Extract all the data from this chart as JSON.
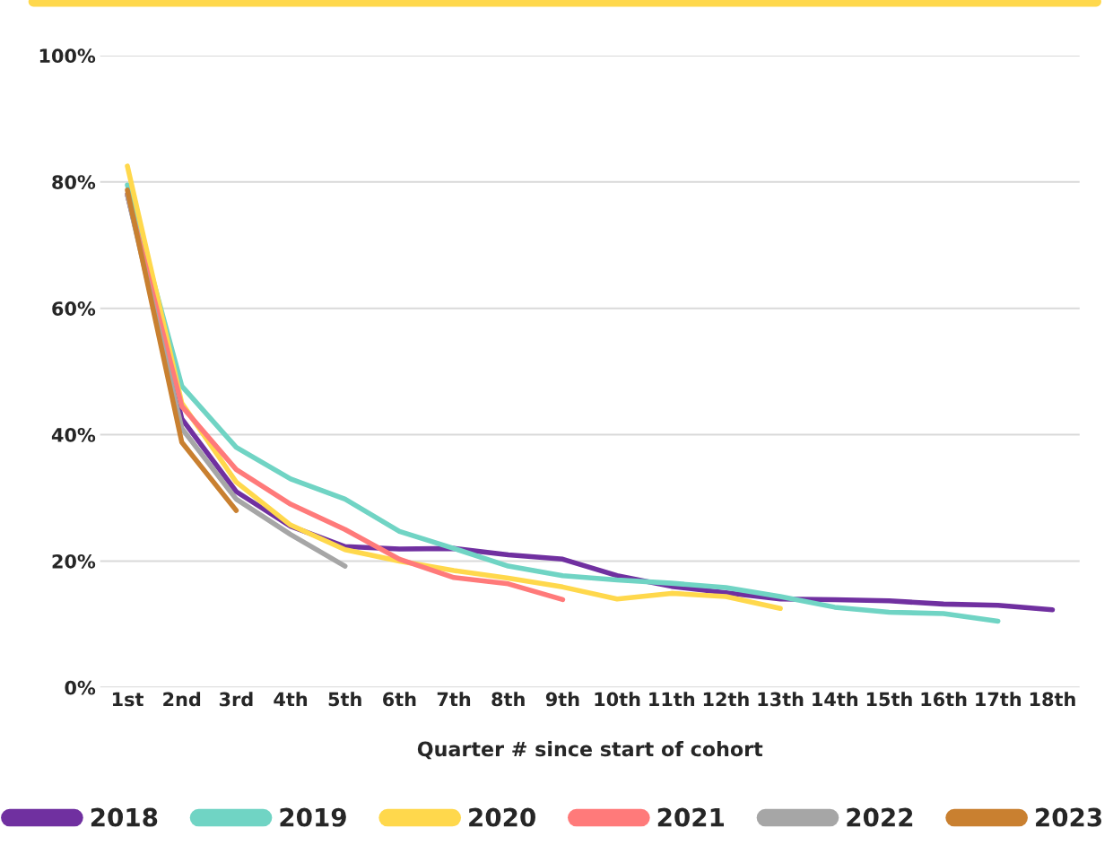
{
  "chart_data": {
    "type": "line",
    "xlabel": "Quarter # since start of cohort",
    "categories": [
      "1st",
      "2nd",
      "3rd",
      "4th",
      "5th",
      "6th",
      "7th",
      "8th",
      "9th",
      "10th",
      "11th",
      "12th",
      "13th",
      "14th",
      "15th",
      "16th",
      "17th",
      "18th"
    ],
    "series": [
      {
        "name": "2018",
        "color": "#7030a0",
        "values": [
          78,
          42.5,
          31,
          25.5,
          22.3,
          21.9,
          22,
          21,
          20.3,
          17.7,
          16,
          15,
          14,
          13.9,
          13.7,
          13.2,
          13,
          12.3
        ]
      },
      {
        "name": "2019",
        "color": "#70d4c4",
        "values": [
          79.5,
          47.7,
          38,
          33,
          29.8,
          24.7,
          22,
          19.2,
          17.7,
          17,
          16.5,
          15.8,
          14.4,
          12.7,
          11.9,
          11.7,
          10.5,
          null
        ]
      },
      {
        "name": "2020",
        "color": "#ffd84c",
        "values": [
          82.5,
          45,
          32.5,
          25.7,
          21.8,
          20,
          18.5,
          17.3,
          15.9,
          14,
          14.9,
          14.4,
          12.5,
          null,
          null,
          null,
          null,
          null
        ]
      },
      {
        "name": "2021",
        "color": "#ff7a7a",
        "values": [
          78,
          44.5,
          34.5,
          29,
          25,
          20.3,
          17.4,
          16.4,
          13.9,
          null,
          null,
          null,
          null,
          null,
          null,
          null,
          null,
          null
        ]
      },
      {
        "name": "2022",
        "color": "#a6a6a6",
        "values": [
          78,
          41,
          29.8,
          24.2,
          19.2,
          null,
          null,
          null,
          null,
          null,
          null,
          null,
          null,
          null,
          null,
          null,
          null,
          null
        ]
      },
      {
        "name": "2023",
        "color": "#c98030",
        "values": [
          78.7,
          38.8,
          28,
          null,
          null,
          null,
          null,
          null,
          null,
          null,
          null,
          null,
          null,
          null,
          null,
          null,
          null,
          null
        ]
      }
    ],
    "ylim": [
      0,
      100
    ],
    "yticks": [
      {
        "value": 0,
        "label": "0%"
      },
      {
        "value": 20,
        "label": "20%"
      },
      {
        "value": 40,
        "label": "40%"
      },
      {
        "value": 60,
        "label": "60%"
      },
      {
        "value": 80,
        "label": "80%"
      },
      {
        "value": 100,
        "label": "100%"
      }
    ],
    "grid": "y",
    "legend": "bottom",
    "marker": "none",
    "line_style": "solid"
  }
}
